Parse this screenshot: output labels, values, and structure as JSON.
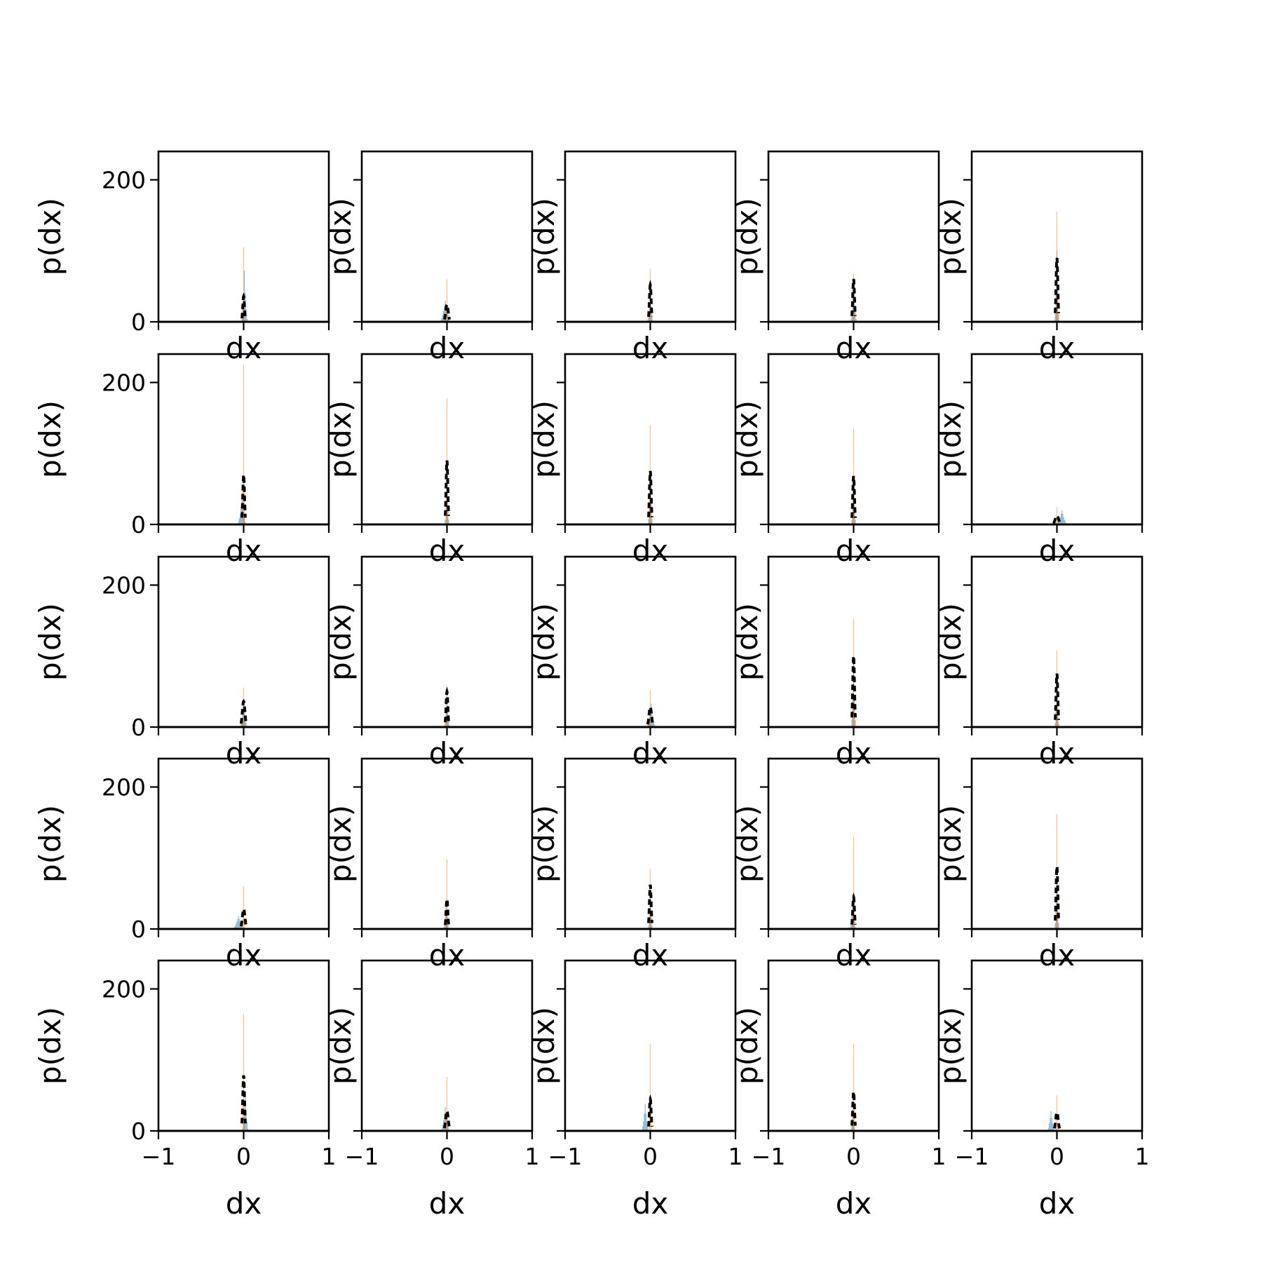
{
  "chart_data": {
    "type": "histogram-grid",
    "rows": 5,
    "cols": 5,
    "xlim": [
      -1,
      1
    ],
    "ylim": [
      0,
      240
    ],
    "xticks": [
      -1,
      0,
      1
    ],
    "xtick_labels": [
      "−1",
      "0",
      "1"
    ],
    "yticks": [
      0,
      200
    ],
    "ytick_labels": [
      "0",
      "200"
    ],
    "xlabel": "dx",
    "ylabel": "p(dx)",
    "series_styles": [
      {
        "key": "blue",
        "color": "#1f77b4",
        "opacity": 0.5,
        "style": "filled-histogram"
      },
      {
        "key": "orange",
        "color": "#ff7f0e",
        "opacity": 0.5,
        "style": "filled-histogram"
      },
      {
        "key": "black",
        "color": "#000000",
        "opacity": 1,
        "style": "dashed-line"
      }
    ],
    "panels": [
      {
        "row": 0,
        "col": 0,
        "orange_peak": 105,
        "orange_center": 0.0,
        "blue_peak": 72,
        "blue_center": 0.01,
        "blue_width": 0.03,
        "black_peak": 36,
        "black_center": 0.0,
        "black_width": 0.02
      },
      {
        "row": 0,
        "col": 1,
        "orange_peak": 60,
        "orange_center": 0.0,
        "blue_peak": 30,
        "blue_center": -0.02,
        "blue_width": 0.06,
        "black_peak": 24,
        "black_center": 0.0,
        "black_width": 0.03
      },
      {
        "row": 0,
        "col": 2,
        "orange_peak": 75,
        "orange_center": 0.0,
        "blue_peak": 40,
        "blue_center": 0.0,
        "blue_width": 0.03,
        "black_peak": 52,
        "black_center": 0.0,
        "black_width": 0.02
      },
      {
        "row": 0,
        "col": 3,
        "orange_peak": 68,
        "orange_center": 0.0,
        "blue_peak": 62,
        "blue_center": 0.0,
        "blue_width": 0.03,
        "black_peak": 60,
        "black_center": 0.0,
        "black_width": 0.02
      },
      {
        "row": 0,
        "col": 4,
        "orange_peak": 155,
        "orange_center": 0.0,
        "blue_peak": 100,
        "blue_center": 0.0,
        "blue_width": 0.02,
        "black_peak": 90,
        "black_center": 0.0,
        "black_width": 0.02
      },
      {
        "row": 1,
        "col": 0,
        "orange_peak": 225,
        "orange_center": 0.0,
        "blue_peak": 35,
        "blue_center": -0.02,
        "blue_width": 0.05,
        "black_peak": 70,
        "black_center": 0.0,
        "black_width": 0.02
      },
      {
        "row": 1,
        "col": 1,
        "orange_peak": 178,
        "orange_center": 0.0,
        "blue_peak": 60,
        "blue_center": 0.0,
        "blue_width": 0.02,
        "black_peak": 90,
        "black_center": 0.0,
        "black_width": 0.02
      },
      {
        "row": 1,
        "col": 2,
        "orange_peak": 140,
        "orange_center": 0.0,
        "blue_peak": 70,
        "blue_center": 0.0,
        "blue_width": 0.02,
        "black_peak": 75,
        "black_center": 0.0,
        "black_width": 0.02
      },
      {
        "row": 1,
        "col": 3,
        "orange_peak": 135,
        "orange_center": 0.0,
        "blue_peak": 60,
        "blue_center": 0.0,
        "blue_width": 0.02,
        "black_peak": 68,
        "black_center": 0.0,
        "black_width": 0.02
      },
      {
        "row": 1,
        "col": 4,
        "orange_peak": 24,
        "orange_center": 0.0,
        "blue_peak": 20,
        "blue_center": 0.06,
        "blue_width": 0.06,
        "black_peak": 12,
        "black_center": 0.0,
        "black_width": 0.04
      },
      {
        "row": 2,
        "col": 0,
        "orange_peak": 55,
        "orange_center": 0.0,
        "blue_peak": 36,
        "blue_center": 0.0,
        "blue_width": 0.04,
        "black_peak": 36,
        "black_center": 0.0,
        "black_width": 0.03
      },
      {
        "row": 2,
        "col": 1,
        "orange_peak": 57,
        "orange_center": 0.0,
        "blue_peak": 40,
        "blue_center": 0.0,
        "blue_width": 0.03,
        "black_peak": 50,
        "black_center": 0.0,
        "black_width": 0.02
      },
      {
        "row": 2,
        "col": 2,
        "orange_peak": 52,
        "orange_center": 0.0,
        "blue_peak": 33,
        "blue_center": 0.01,
        "blue_width": 0.05,
        "black_peak": 28,
        "black_center": 0.0,
        "black_width": 0.03
      },
      {
        "row": 2,
        "col": 3,
        "orange_peak": 152,
        "orange_center": 0.0,
        "blue_peak": 90,
        "blue_center": 0.0,
        "blue_width": 0.02,
        "black_peak": 100,
        "black_center": 0.0,
        "black_width": 0.02
      },
      {
        "row": 2,
        "col": 4,
        "orange_peak": 108,
        "orange_center": 0.0,
        "blue_peak": 50,
        "blue_center": 0.0,
        "blue_width": 0.02,
        "black_peak": 75,
        "black_center": 0.0,
        "black_width": 0.02
      },
      {
        "row": 3,
        "col": 0,
        "orange_peak": 60,
        "orange_center": 0.0,
        "blue_peak": 18,
        "blue_center": -0.06,
        "blue_width": 0.07,
        "black_peak": 28,
        "black_center": 0.0,
        "black_width": 0.03
      },
      {
        "row": 3,
        "col": 1,
        "orange_peak": 98,
        "orange_center": 0.0,
        "blue_peak": 30,
        "blue_center": -0.01,
        "blue_width": 0.03,
        "black_peak": 42,
        "black_center": 0.0,
        "black_width": 0.02
      },
      {
        "row": 3,
        "col": 2,
        "orange_peak": 85,
        "orange_center": 0.0,
        "blue_peak": 40,
        "blue_center": 0.0,
        "blue_width": 0.02,
        "black_peak": 62,
        "black_center": 0.0,
        "black_width": 0.02
      },
      {
        "row": 3,
        "col": 3,
        "orange_peak": 130,
        "orange_center": 0.0,
        "blue_peak": 42,
        "blue_center": -0.01,
        "blue_width": 0.03,
        "black_peak": 45,
        "black_center": 0.0,
        "black_width": 0.02
      },
      {
        "row": 3,
        "col": 4,
        "orange_peak": 162,
        "orange_center": 0.0,
        "blue_peak": 70,
        "blue_center": 0.0,
        "blue_width": 0.02,
        "black_peak": 88,
        "black_center": 0.0,
        "black_width": 0.02
      },
      {
        "row": 4,
        "col": 0,
        "orange_peak": 165,
        "orange_center": 0.0,
        "blue_peak": 50,
        "blue_center": 0.02,
        "blue_width": 0.03,
        "black_peak": 78,
        "black_center": 0.0,
        "black_width": 0.02
      },
      {
        "row": 4,
        "col": 1,
        "orange_peak": 76,
        "orange_center": 0.0,
        "blue_peak": 34,
        "blue_center": -0.02,
        "blue_width": 0.05,
        "black_peak": 28,
        "black_center": 0.0,
        "black_width": 0.03
      },
      {
        "row": 4,
        "col": 2,
        "orange_peak": 122,
        "orange_center": 0.0,
        "blue_peak": 38,
        "blue_center": -0.06,
        "blue_width": 0.04,
        "black_peak": 45,
        "black_center": 0.0,
        "black_width": 0.02
      },
      {
        "row": 4,
        "col": 3,
        "orange_peak": 122,
        "orange_center": 0.0,
        "blue_peak": 30,
        "blue_center": -0.01,
        "blue_width": 0.02,
        "black_peak": 55,
        "black_center": 0.0,
        "black_width": 0.02
      },
      {
        "row": 4,
        "col": 4,
        "orange_peak": 50,
        "orange_center": 0.0,
        "blue_peak": 28,
        "blue_center": -0.07,
        "blue_width": 0.04,
        "black_peak": 26,
        "black_center": 0.0,
        "black_width": 0.03
      }
    ]
  }
}
